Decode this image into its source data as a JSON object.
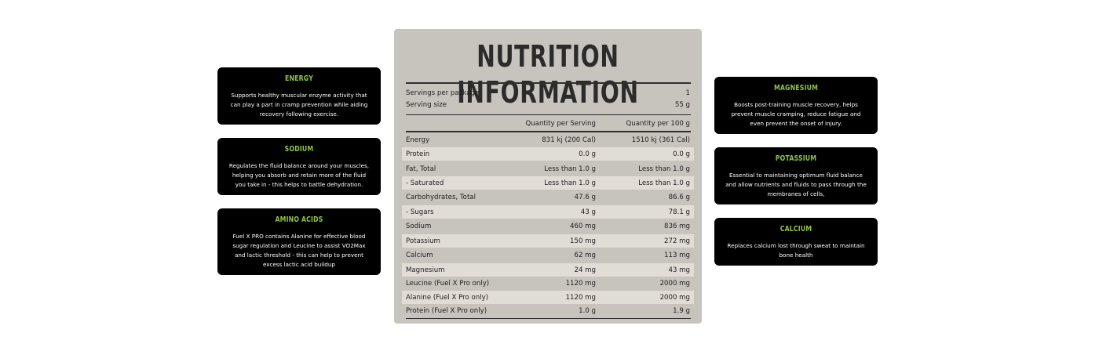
{
  "left_cards": [
    {
      "title": "ENERGY",
      "text": "Supports healthy muscular enzyme activity that can play a part in cramp prevention while aiding recovery following exercise."
    },
    {
      "title": "SODIUM",
      "text": "Regulates the fluid balance around your muscles, helping you absorb and retain more of the fluid you take in - this helps to battle dehydration."
    },
    {
      "title": "AMINO ACIDS",
      "text": "Fuel X PRO contains Alanine for effective blood sugar regulation and Leucine to assist VO2Max and lactic threshold - this can help to prevent excess lactic acid buildup"
    }
  ],
  "right_cards": [
    {
      "title": "MAGNESIUM",
      "text": "Boosts post-training muscle recovery, helps prevent muscle cramping, reduce fatigue and even prevent the onset of injury."
    },
    {
      "title": "POTASSIUM",
      "text": "Essential to maintaining optimum fluid balance and allow nutrients and fluids to pass through the membranes of cells,"
    },
    {
      "title": "CALCIUM",
      "text": "Replaces calcium lost through sweat to maintain bone health"
    }
  ],
  "nutrition": {
    "title": "NUTRITION INFORMATION",
    "servings_label": "Servings per package",
    "servings_value": "1",
    "serving_size_label": "Serving size",
    "serving_size_value": "55 g",
    "col_per_serving": "Quantity per Serving",
    "col_per_100g": "Quantity per 100 g",
    "rows": [
      {
        "label": "Energy",
        "per_serving": "831 kj (200 Cal)",
        "per_100g": "1510 kj (361 Cal)"
      },
      {
        "label": "Protein",
        "per_serving": "0.0 g",
        "per_100g": "0.0 g"
      },
      {
        "label": "Fat, Total",
        "per_serving": "Less than 1.0 g",
        "per_100g": "Less than 1.0 g"
      },
      {
        "label": "- Saturated",
        "per_serving": "Less than 1.0 g",
        "per_100g": "Less than 1.0 g"
      },
      {
        "label": "Carbohydrates, Total",
        "per_serving": "47.6 g",
        "per_100g": "86.6 g"
      },
      {
        "label": "- Sugars",
        "per_serving": "43 g",
        "per_100g": "78.1 g"
      },
      {
        "label": "Sodium",
        "per_serving": "460 mg",
        "per_100g": "836 mg"
      },
      {
        "label": "Potassium",
        "per_serving": "150 mg",
        "per_100g": "272 mg"
      },
      {
        "label": "Calcium",
        "per_serving": "62 mg",
        "per_100g": "113 mg"
      },
      {
        "label": "Magnesium",
        "per_serving": "24 mg",
        "per_100g": "43 mg"
      },
      {
        "label": "Leucine (Fuel X Pro only)",
        "per_serving": "1120 mg",
        "per_100g": "2000 mg"
      },
      {
        "label": "Alanine (Fuel X Pro only)",
        "per_serving": "1120 mg",
        "per_100g": "2000 mg"
      },
      {
        "label": "Protein (Fuel X Pro only)",
        "per_serving": "1.0 g",
        "per_100g": "1.9 g"
      }
    ]
  },
  "colors": {
    "card_bg": "#000000",
    "card_title": "#8bc34a",
    "panel_bg": "#c7c3bd",
    "row_shade": "#e1dcd6"
  }
}
